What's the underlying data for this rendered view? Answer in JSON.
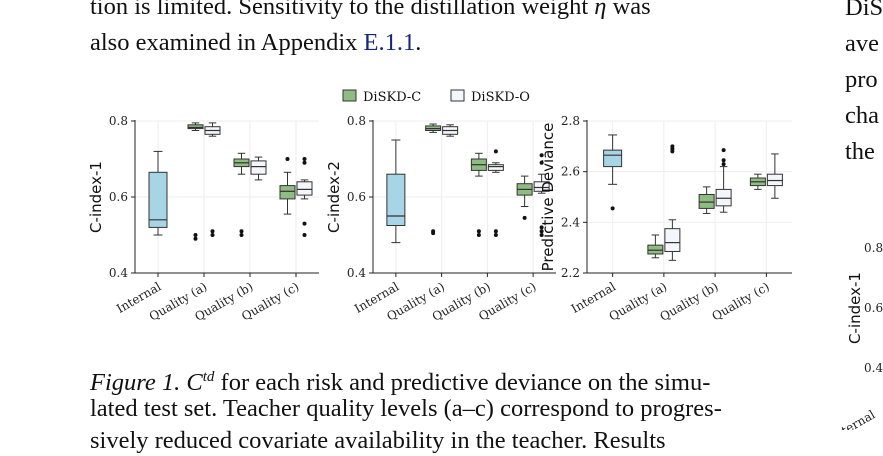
{
  "text": {
    "line1_start": "tion is limited. Sensitivity to the distillation weight ",
    "eta": "η",
    "line1_end": " was",
    "line2_start": "also examined in Appendix ",
    "appendix_ref": "E.1.1",
    "line2_end": ".",
    "right_col": [
      "DiS",
      "ave",
      "pro",
      "cha",
      "the"
    ],
    "caption_label": "Figure 1.",
    "caption_math_base": "C",
    "caption_math_sup": "td",
    "caption_line1_rest": " for each risk and predictive deviance on the simu-",
    "caption_line2": "lated test set. Teacher quality levels (a–c) correspond to progres-",
    "caption_line3": "sively reduced covariate availability in the teacher. Results"
  },
  "legend": [
    {
      "name": "DiSKD-C",
      "color": "#8fbc82"
    },
    {
      "name": "DiSKD-O",
      "color": "#f4f6fb"
    }
  ],
  "colors": {
    "internal": "#a7d5e6",
    "diskd_c": "#8fbc82",
    "diskd_o": "#f4f6fb",
    "edge": "#333333"
  },
  "chart_data": [
    {
      "type": "box",
      "ylabel": "C-index-1",
      "ylim": [
        0.4,
        0.8
      ],
      "yticks": [
        "0.4",
        "0.6",
        "0.8"
      ],
      "categories": [
        "Internal",
        "Quality (a)",
        "Quality (b)",
        "Quality (c)"
      ],
      "internal": {
        "whislo": 0.5,
        "q1": 0.52,
        "med": 0.54,
        "q3": 0.665,
        "whishi": 0.72,
        "fliers": []
      },
      "series": [
        {
          "name": "DiSKD-C",
          "boxes": [
            {
              "whislo": 0.775,
              "q1": 0.78,
              "med": 0.783,
              "q3": 0.79,
              "whishi": 0.795,
              "fliers": [
                0.5,
                0.49
              ]
            },
            {
              "whislo": 0.66,
              "q1": 0.68,
              "med": 0.69,
              "q3": 0.7,
              "whishi": 0.715,
              "fliers": [
                0.51,
                0.5
              ]
            },
            {
              "whislo": 0.555,
              "q1": 0.595,
              "med": 0.615,
              "q3": 0.63,
              "whishi": 0.665,
              "fliers": [
                0.7
              ]
            }
          ]
        },
        {
          "name": "DiSKD-O",
          "boxes": [
            {
              "whislo": 0.76,
              "q1": 0.765,
              "med": 0.775,
              "q3": 0.785,
              "whishi": 0.795,
              "fliers": [
                0.51,
                0.5
              ]
            },
            {
              "whislo": 0.645,
              "q1": 0.66,
              "med": 0.68,
              "q3": 0.695,
              "whishi": 0.705,
              "fliers": []
            },
            {
              "whislo": 0.595,
              "q1": 0.605,
              "med": 0.62,
              "q3": 0.64,
              "whishi": 0.645,
              "fliers": [
                0.7,
                0.69,
                0.53,
                0.5
              ]
            }
          ]
        }
      ]
    },
    {
      "type": "box",
      "ylabel": "C-index-2",
      "ylim": [
        0.4,
        0.8
      ],
      "yticks": [
        "0.4",
        "0.6",
        "0.8"
      ],
      "categories": [
        "Internal",
        "Quality (a)",
        "Quality (b)",
        "Quality (c)"
      ],
      "internal": {
        "whislo": 0.48,
        "q1": 0.525,
        "med": 0.55,
        "q3": 0.66,
        "whishi": 0.75,
        "fliers": []
      },
      "series": [
        {
          "name": "DiSKD-C",
          "boxes": [
            {
              "whislo": 0.77,
              "q1": 0.775,
              "med": 0.78,
              "q3": 0.787,
              "whishi": 0.792,
              "fliers": [
                0.51,
                0.505
              ]
            },
            {
              "whislo": 0.655,
              "q1": 0.67,
              "med": 0.685,
              "q3": 0.7,
              "whishi": 0.715,
              "fliers": [
                0.51,
                0.5
              ]
            },
            {
              "whislo": 0.575,
              "q1": 0.605,
              "med": 0.62,
              "q3": 0.635,
              "whishi": 0.655,
              "fliers": [
                0.545
              ]
            }
          ]
        },
        {
          "name": "DiSKD-O",
          "boxes": [
            {
              "whislo": 0.76,
              "q1": 0.765,
              "med": 0.775,
              "q3": 0.785,
              "whishi": 0.79,
              "fliers": []
            },
            {
              "whislo": 0.665,
              "q1": 0.67,
              "med": 0.68,
              "q3": 0.685,
              "whishi": 0.69,
              "fliers": [
                0.72,
                0.51,
                0.5
              ]
            },
            {
              "whislo": 0.61,
              "q1": 0.615,
              "med": 0.625,
              "q3": 0.64,
              "whishi": 0.66,
              "fliers": [
                0.71,
                0.69,
                0.52,
                0.51,
                0.5
              ]
            }
          ]
        }
      ]
    },
    {
      "type": "box",
      "ylabel": "Predictive Deviance",
      "ylim": [
        2.2,
        2.8
      ],
      "yticks": [
        "2.2",
        "2.4",
        "2.6",
        "2.8"
      ],
      "categories": [
        "Internal",
        "Quality (a)",
        "Quality (b)",
        "Quality (c)"
      ],
      "internal": {
        "whislo": 2.55,
        "q1": 2.62,
        "med": 2.665,
        "q3": 2.685,
        "whishi": 2.745,
        "fliers": [
          2.455
        ]
      },
      "series": [
        {
          "name": "DiSKD-C",
          "boxes": [
            {
              "whislo": 2.26,
              "q1": 2.275,
              "med": 2.29,
              "q3": 2.31,
              "whishi": 2.35,
              "fliers": []
            },
            {
              "whislo": 2.435,
              "q1": 2.455,
              "med": 2.48,
              "q3": 2.51,
              "whishi": 2.54,
              "fliers": []
            },
            {
              "whislo": 2.53,
              "q1": 2.545,
              "med": 2.56,
              "q3": 2.575,
              "whishi": 2.59,
              "fliers": []
            }
          ]
        },
        {
          "name": "DiSKD-O",
          "boxes": [
            {
              "whislo": 2.25,
              "q1": 2.285,
              "med": 2.32,
              "q3": 2.375,
              "whishi": 2.41,
              "fliers": [
                2.7,
                2.69,
                2.68
              ]
            },
            {
              "whislo": 2.44,
              "q1": 2.465,
              "med": 2.495,
              "q3": 2.53,
              "whishi": 2.62,
              "fliers": [
                2.685,
                2.645,
                2.63
              ]
            },
            {
              "whislo": 2.495,
              "q1": 2.545,
              "med": 2.565,
              "q3": 2.59,
              "whishi": 2.67,
              "fliers": []
            }
          ]
        }
      ]
    },
    {
      "type": "box",
      "partial": true,
      "ylabel": "C-index-1",
      "yticks": [
        "0.4",
        "0.6",
        "0.8"
      ],
      "categories": [
        "Internal"
      ]
    }
  ]
}
